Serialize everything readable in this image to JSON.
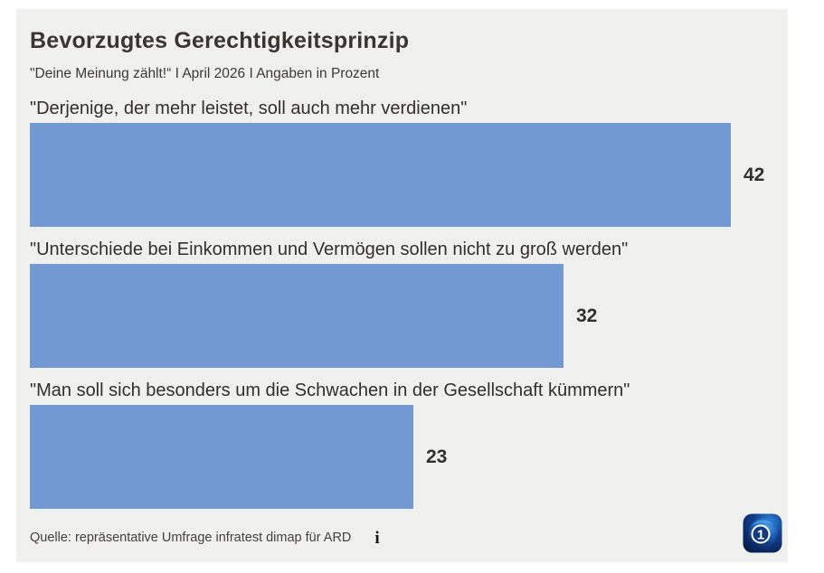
{
  "header": {
    "title": "Bevorzugtes Gerechtigkeitsprinzip",
    "subtitle": "\"Deine Meinung zählt!“ I April 2026 I Angaben in Prozent"
  },
  "chart_data": {
    "type": "bar",
    "orientation": "horizontal",
    "title": "Bevorzugtes Gerechtigkeitsprinzip",
    "subtitle": "\"Deine Meinung zählt!“ I April 2026 I Angaben in Prozent",
    "unit": "Prozent",
    "categories": [
      "\"Derjenige, der mehr leistet, soll auch mehr verdienen\"",
      "\"Unterschiede bei Einkommen und Vermögen sollen nicht zu groß werden\"",
      "\"Man soll sich besonders um die Schwachen in der Gesellschaft kümmern\""
    ],
    "values": [
      42,
      32,
      23
    ],
    "xlim": [
      0,
      45
    ],
    "value_labels_shown": true,
    "grid": false,
    "legend": "none",
    "bar_color": "#7299d1",
    "value_label_color": "#32302e"
  },
  "footer": {
    "source": "Quelle: repräsentative Umfrage infratest dimap für ARD",
    "info_icon_glyph": "i"
  },
  "logo": {
    "name": "ARD tagesschau globe logo",
    "digit": "1"
  },
  "colors": {
    "card_background": "#f0f0ef",
    "page_background": "#ffffff",
    "bar_blue": "#7299d1",
    "title_text": "#3a3531",
    "body_text": "#32302e",
    "logo_navy": "#0b2f70",
    "logo_blue": "#1f6fd0"
  }
}
